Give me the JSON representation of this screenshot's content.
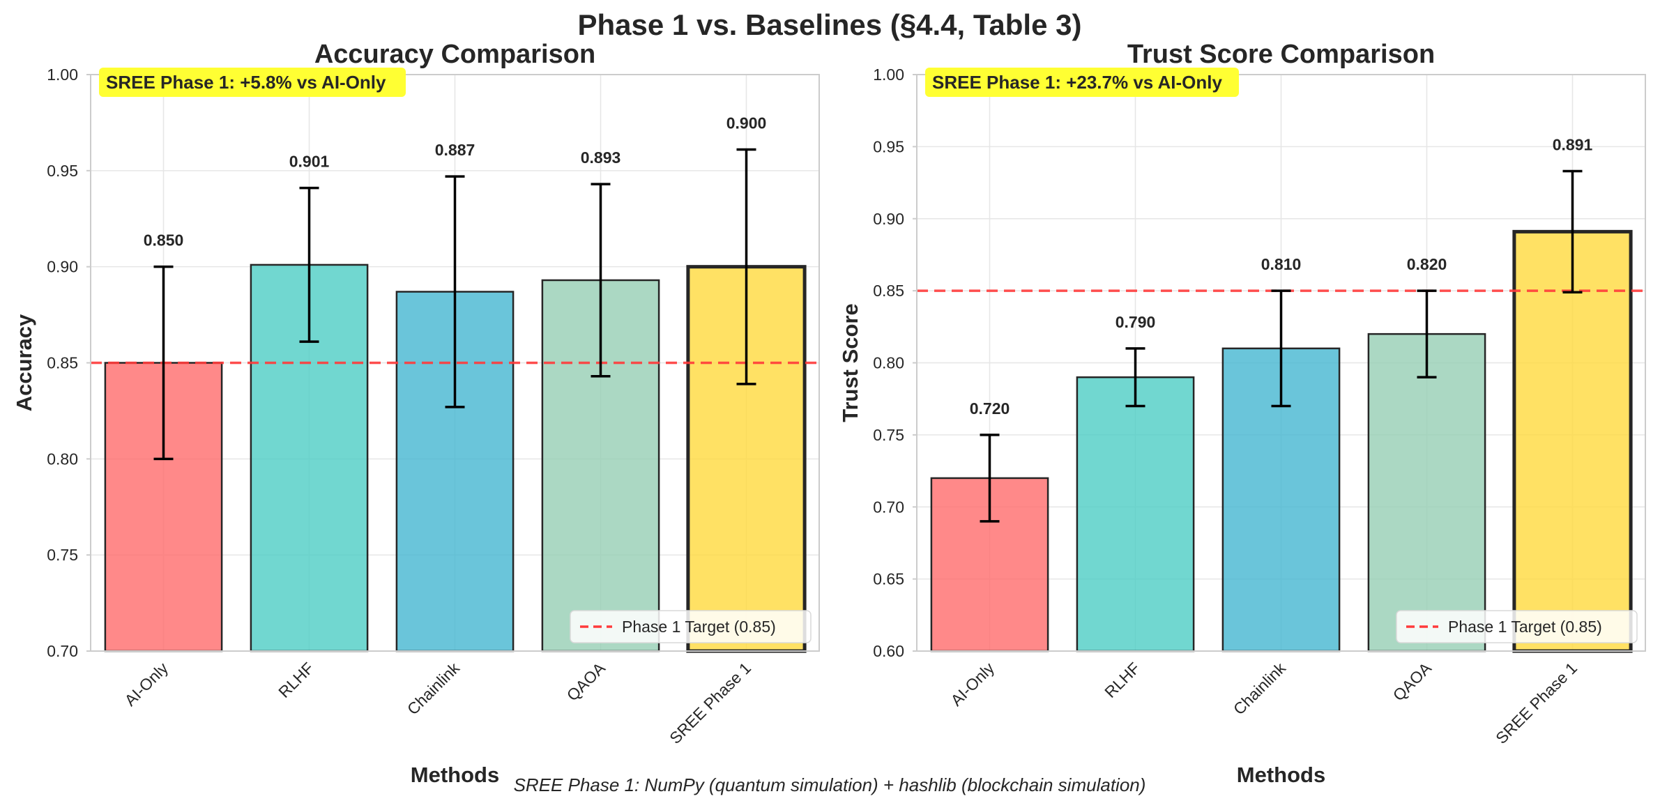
{
  "figure_title": "Phase 1 vs. Baselines (§4.4, Table 3)",
  "caption": "SREE Phase 1: NumPy (quantum simulation) + hashlib (blockchain simulation)",
  "colors": {
    "bars": [
      "#ff6b6b",
      "#4ecdc4",
      "#45b7d1",
      "#96ceb4",
      "#ffd93d"
    ],
    "target_line": "#ff3b3b",
    "annotation_bg": "#ffff33"
  },
  "chart_data": [
    {
      "type": "bar",
      "title": "Accuracy Comparison",
      "xlabel": "Methods",
      "ylabel": "Accuracy",
      "categories": [
        "AI-Only",
        "RLHF",
        "Chainlink",
        "QAOA",
        "SREE Phase 1"
      ],
      "values": [
        0.85,
        0.901,
        0.887,
        0.893,
        0.9
      ],
      "value_labels": [
        "0.850",
        "0.901",
        "0.887",
        "0.893",
        "0.900"
      ],
      "error": [
        0.05,
        0.04,
        0.06,
        0.05,
        0.061
      ],
      "ylim": [
        0.7,
        1.0
      ],
      "yticks": [
        "0.70",
        "0.75",
        "0.80",
        "0.85",
        "0.90",
        "0.95",
        "1.00"
      ],
      "ytick_values": [
        0.7,
        0.75,
        0.8,
        0.85,
        0.9,
        0.95,
        1.0
      ],
      "target": 0.85,
      "legend": [
        "Phase 1 Target (0.85)"
      ],
      "legend_position": "lower-right",
      "annotation": "SREE Phase 1: +5.8% vs AI-Only",
      "grid": true
    },
    {
      "type": "bar",
      "title": "Trust Score Comparison",
      "xlabel": "Methods",
      "ylabel": "Trust Score",
      "categories": [
        "AI-Only",
        "RLHF",
        "Chainlink",
        "QAOA",
        "SREE Phase 1"
      ],
      "values": [
        0.72,
        0.79,
        0.81,
        0.82,
        0.891
      ],
      "value_labels": [
        "0.720",
        "0.790",
        "0.810",
        "0.820",
        "0.891"
      ],
      "error": [
        0.03,
        0.02,
        0.04,
        0.03,
        0.042
      ],
      "ylim": [
        0.6,
        1.0
      ],
      "yticks": [
        "0.60",
        "0.65",
        "0.70",
        "0.75",
        "0.80",
        "0.85",
        "0.90",
        "0.95",
        "1.00"
      ],
      "ytick_values": [
        0.6,
        0.65,
        0.7,
        0.75,
        0.8,
        0.85,
        0.9,
        0.95,
        1.0
      ],
      "target": 0.85,
      "legend": [
        "Phase 1 Target (0.85)"
      ],
      "legend_position": "lower-right",
      "annotation": "SREE Phase 1: +23.7% vs AI-Only",
      "grid": true
    }
  ]
}
